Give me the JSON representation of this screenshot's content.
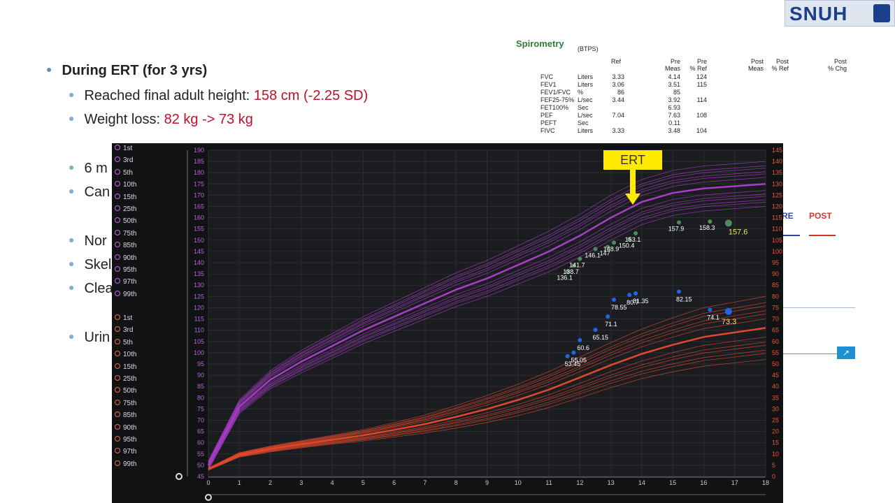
{
  "slide": {
    "bullet1": "During ERT (for 3 yrs)",
    "bullet1a_prefix": "Reached final adult height: ",
    "bullet1a_value": "158 cm (-2.25 SD)",
    "bullet1b_prefix": "Weight loss: ",
    "bullet1b_value": "82 kg -> 73 kg",
    "frag1": "6 m",
    "frag2": "Can",
    "frag3": "Nor",
    "frag4": "Skel",
    "frag5": "Clea",
    "frag6": "Urin"
  },
  "logo": {
    "text": "SNUH"
  },
  "spirometry": {
    "title": "Spirometry",
    "btps": "(BTPS)",
    "headers": [
      "Ref",
      "Pre\nMeas",
      "Pre\n% Ref",
      "Post\nMeas",
      "Post\n% Ref",
      "Post\n% Chg"
    ],
    "rows": [
      [
        "FVC",
        "Liters",
        "3.33",
        "4.14",
        "124"
      ],
      [
        "FEV1",
        "Liters",
        "3.06",
        "3.51",
        "115"
      ],
      [
        "FEV1/FVC",
        "%",
        "86",
        "85",
        ""
      ],
      [
        "FEF25-75%",
        "L/sec",
        "3.44",
        "3.92",
        "114"
      ],
      [
        "FET100%",
        "Sec",
        "",
        "6.93",
        ""
      ],
      [
        "PEF",
        "L/sec",
        "7.04",
        "7.63",
        "108"
      ],
      [
        "PEFT",
        "Sec",
        "",
        "0.11",
        ""
      ],
      [
        "FIVC",
        "Liters",
        "3.33",
        "3.48",
        "104"
      ]
    ]
  },
  "right_fragments": {
    "pre": "RE",
    "post": "POST"
  },
  "chart": {
    "ert_label": "ERT",
    "height_percentiles": [
      "1st",
      "3rd",
      "5th",
      "10th",
      "15th",
      "25th",
      "50th",
      "75th",
      "85th",
      "90th",
      "95th",
      "97th",
      "99th"
    ],
    "weight_percentiles": [
      "1st",
      "3rd",
      "5th",
      "10th",
      "15th",
      "25th",
      "50th",
      "75th",
      "85th",
      "90th",
      "95th",
      "97th",
      "99th"
    ]
  },
  "chart_data": {
    "type": "line",
    "x_ticks": [
      0,
      1,
      2,
      3,
      4,
      5,
      6,
      7,
      8,
      9,
      10,
      11,
      12,
      13,
      14,
      15,
      16,
      17,
      18
    ],
    "left_axis": {
      "label": "",
      "range": [
        45,
        190
      ]
    },
    "right_axis": {
      "label": "",
      "range": [
        0,
        145
      ]
    },
    "height_points": {
      "x": [
        11.6,
        11.8,
        12.0,
        12.5,
        12.9,
        13.1,
        13.6,
        13.8,
        15.2,
        16.2,
        16.8
      ],
      "labels": [
        "136.1",
        "138.7",
        "141.7",
        "146.1",
        "147",
        "148.9",
        "150.4",
        "153.1",
        "157.9",
        "158.3",
        "157.6"
      ]
    },
    "weight_points": {
      "x": [
        11.6,
        11.8,
        12.0,
        12.5,
        12.9,
        13.1,
        13.6,
        13.8,
        15.2,
        16.2,
        16.8
      ],
      "labels": [
        "53.45",
        "55.05",
        "60.6",
        "65.15",
        "71.1",
        "78.55",
        "80.7",
        "81.35",
        "82.15",
        "74.1",
        "73.3"
      ]
    },
    "colors": {
      "height": "#a93cc8",
      "weight": "#e0482a",
      "points_height": "#4f8a5a",
      "points_weight": "#2164e8"
    }
  }
}
